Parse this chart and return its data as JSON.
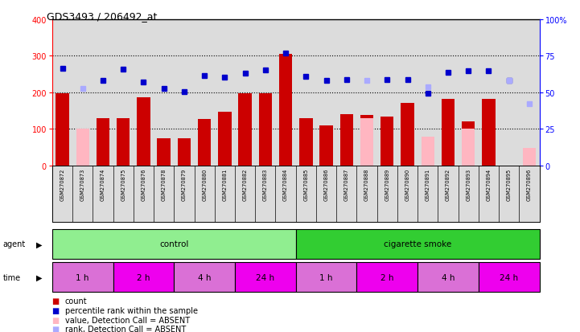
{
  "title": "GDS3493 / 206492_at",
  "samples": [
    "GSM270872",
    "GSM270873",
    "GSM270874",
    "GSM270875",
    "GSM270876",
    "GSM270878",
    "GSM270879",
    "GSM270880",
    "GSM270881",
    "GSM270882",
    "GSM270883",
    "GSM270884",
    "GSM270885",
    "GSM270886",
    "GSM270887",
    "GSM270888",
    "GSM270889",
    "GSM270890",
    "GSM270891",
    "GSM270892",
    "GSM270893",
    "GSM270894",
    "GSM270895",
    "GSM270896"
  ],
  "count_values": [
    197,
    null,
    130,
    130,
    187,
    75,
    75,
    127,
    148,
    197,
    197,
    305,
    130,
    110,
    140,
    138,
    135,
    172,
    null,
    182,
    121,
    182,
    null,
    null
  ],
  "count_absent": [
    null,
    100,
    null,
    null,
    null,
    null,
    null,
    null,
    null,
    null,
    null,
    null,
    null,
    null,
    null,
    130,
    null,
    null,
    78,
    null,
    102,
    null,
    null,
    48
  ],
  "rank_present": [
    265,
    null,
    233,
    263,
    228,
    210,
    202,
    247,
    242,
    252,
    262,
    308,
    243,
    233,
    235,
    null,
    235,
    235,
    197,
    255,
    260,
    260,
    233,
    null
  ],
  "rank_absent": [
    null,
    210,
    null,
    null,
    null,
    null,
    null,
    null,
    null,
    null,
    null,
    null,
    null,
    null,
    null,
    233,
    null,
    null,
    215,
    null,
    null,
    null,
    232,
    168
  ],
  "ylim_left": [
    0,
    400
  ],
  "ylim_right": [
    0,
    100
  ],
  "yticks_left": [
    0,
    100,
    200,
    300,
    400
  ],
  "yticks_right": [
    0,
    25,
    50,
    75,
    100
  ],
  "agent_groups": [
    {
      "label": "control",
      "start": 0,
      "end": 12,
      "color": "#90EE90"
    },
    {
      "label": "cigarette smoke",
      "start": 12,
      "end": 24,
      "color": "#32CD32"
    }
  ],
  "time_groups": [
    {
      "label": "1 h",
      "start": 0,
      "end": 3,
      "color": "#DA70D6"
    },
    {
      "label": "2 h",
      "start": 3,
      "end": 6,
      "color": "#EE00EE"
    },
    {
      "label": "4 h",
      "start": 6,
      "end": 9,
      "color": "#DA70D6"
    },
    {
      "label": "24 h",
      "start": 9,
      "end": 12,
      "color": "#EE00EE"
    },
    {
      "label": "1 h",
      "start": 12,
      "end": 15,
      "color": "#DA70D6"
    },
    {
      "label": "2 h",
      "start": 15,
      "end": 18,
      "color": "#EE00EE"
    },
    {
      "label": "4 h",
      "start": 18,
      "end": 21,
      "color": "#DA70D6"
    },
    {
      "label": "24 h",
      "start": 21,
      "end": 24,
      "color": "#EE00EE"
    }
  ],
  "legend_items": [
    {
      "label": "count",
      "color": "#CC0000"
    },
    {
      "label": "percentile rank within the sample",
      "color": "#0000CC"
    },
    {
      "label": "value, Detection Call = ABSENT",
      "color": "#FFB6C1"
    },
    {
      "label": "rank, Detection Call = ABSENT",
      "color": "#AAAAFF"
    }
  ],
  "bar_color_present": "#CC0000",
  "bar_color_absent": "#FFB6C1",
  "dot_color_present": "#0000CC",
  "dot_color_absent": "#AAAAFF",
  "bg_color": "#DCDCDC",
  "grid_color": "#000000"
}
